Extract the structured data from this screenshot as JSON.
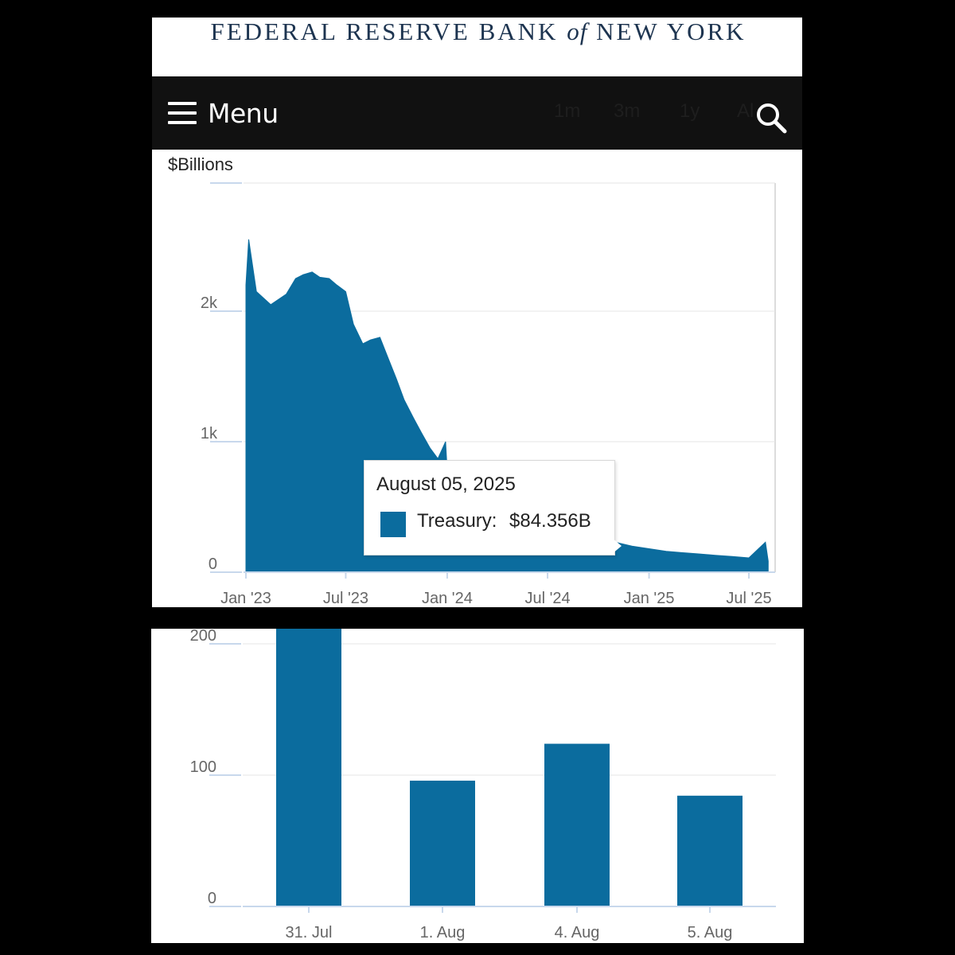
{
  "header": {
    "brand_prefix": "FEDERAL RESERVE BANK",
    "brand_of": "of",
    "brand_suffix": "NEW YORK",
    "menu_label": "Menu",
    "range_buttons": [
      "1m",
      "3m",
      "1y",
      "All"
    ]
  },
  "colors": {
    "series": "#0b6c9e",
    "brand": "#1d3450",
    "nav": "#111111",
    "grid": "#e6e6e6"
  },
  "tooltip": {
    "date": "August 05, 2025",
    "series": "Treasury:",
    "value": "$84.356B"
  },
  "chart_data": [
    {
      "type": "area",
      "unit_label": "$Billions",
      "x_tick_labels": [
        "Jan '23",
        "Jul '23",
        "Jan '24",
        "Jul '24",
        "Jan '25",
        "Jul '25"
      ],
      "y_tick_labels": [
        "0",
        "1k",
        "2k"
      ],
      "ylim": [
        0,
        3000
      ],
      "grid": true,
      "series": [
        {
          "name": "Treasury",
          "x": [
            "2023-01-01",
            "2023-01-06",
            "2023-01-20",
            "2023-02-15",
            "2023-03-15",
            "2023-04-01",
            "2023-04-15",
            "2023-05-01",
            "2023-05-15",
            "2023-06-01",
            "2023-06-15",
            "2023-07-01",
            "2023-07-15",
            "2023-08-01",
            "2023-08-15",
            "2023-09-01",
            "2023-09-15",
            "2023-10-01",
            "2023-10-15",
            "2023-11-01",
            "2023-11-15",
            "2023-12-01",
            "2023-12-15",
            "2023-12-29",
            "2024-01-01",
            "2024-01-15",
            "2024-02-01",
            "2024-02-15",
            "2024-03-01",
            "2024-03-15",
            "2024-04-01",
            "2024-04-15",
            "2024-05-01",
            "2024-05-15",
            "2024-06-01",
            "2024-06-15",
            "2024-07-01",
            "2024-08-01",
            "2024-09-01",
            "2024-10-01",
            "2024-11-01",
            "2024-12-01",
            "2025-01-01",
            "2025-02-01",
            "2025-03-01",
            "2025-04-01",
            "2025-05-01",
            "2025-06-01",
            "2025-07-01",
            "2025-07-31",
            "2025-08-05"
          ],
          "values": [
            2200,
            2550,
            2150,
            2050,
            2130,
            2250,
            2280,
            2300,
            2260,
            2250,
            2200,
            2150,
            1900,
            1750,
            1780,
            1800,
            1650,
            1480,
            1320,
            1180,
            1070,
            950,
            870,
            1000,
            780,
            700,
            650,
            590,
            560,
            550,
            540,
            500,
            480,
            455,
            420,
            400,
            370,
            340,
            300,
            260,
            230,
            200,
            180,
            160,
            150,
            140,
            130,
            120,
            110,
            230,
            84
          ]
        }
      ]
    },
    {
      "type": "bar",
      "categories": [
        "31. Jul",
        "1. Aug",
        "4. Aug",
        "5. Aug"
      ],
      "y_tick_labels": [
        "0",
        "100",
        "200"
      ],
      "ylim": [
        0,
        200
      ],
      "grid": true,
      "series": [
        {
          "name": "Treasury",
          "values": [
            230,
            95.8,
            123.9,
            84.356
          ]
        }
      ]
    }
  ]
}
